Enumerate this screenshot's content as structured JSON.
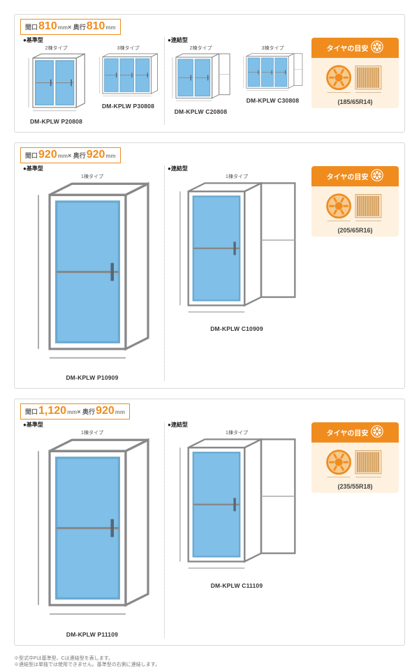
{
  "colors": {
    "orange": "#f08c1e",
    "orange_light": "#fef1df",
    "door_fill": "#7fbfe8",
    "border": "#d9d9d9"
  },
  "sections": [
    {
      "dim_label": {
        "prefix": "間口",
        "w": "810",
        "mid": "× 奥行",
        "d": "810",
        "unit": "mm"
      },
      "groups": [
        {
          "type_label": "●基準型",
          "items": [
            {
              "subtype": "2棟タイプ",
              "model": "DM-KPLW P20808",
              "doors": 2,
              "connected": false
            },
            {
              "subtype": "3棟タイプ",
              "model": "DM-KPLW P30808",
              "doors": 3,
              "connected": false
            }
          ]
        },
        {
          "type_label": "●連結型",
          "items": [
            {
              "subtype": "2棟タイプ",
              "model": "DM-KPLW C20808",
              "doors": 2,
              "connected": true
            },
            {
              "subtype": "3棟タイプ",
              "model": "DM-KPLW C30808",
              "doors": 3,
              "connected": true
            }
          ]
        }
      ],
      "tire": {
        "title": "タイヤの目安",
        "spec": "(185/65R14)"
      }
    },
    {
      "dim_label": {
        "prefix": "間口",
        "w": "920",
        "mid": "× 奥行",
        "d": "920",
        "unit": "mm"
      },
      "groups": [
        {
          "type_label": "●基準型",
          "items": [
            {
              "subtype": "1棟タイプ",
              "model": "DM-KPLW P10909",
              "doors": 1,
              "connected": false
            }
          ]
        },
        {
          "type_label": "●連結型",
          "items": [
            {
              "subtype": "1棟タイプ",
              "model": "DM-KPLW C10909",
              "doors": 1,
              "connected": true
            }
          ]
        }
      ],
      "tire": {
        "title": "タイヤの目安",
        "spec": "(205/65R16)"
      }
    },
    {
      "dim_label": {
        "prefix": "間口",
        "w": "1,120",
        "mid": "× 奥行",
        "d": "920",
        "unit": "mm"
      },
      "groups": [
        {
          "type_label": "●基準型",
          "items": [
            {
              "subtype": "1棟タイプ",
              "model": "DM-KPLW P11109",
              "doors": 1,
              "connected": false
            }
          ]
        },
        {
          "type_label": "●連結型",
          "items": [
            {
              "subtype": "1棟タイプ",
              "model": "DM-KPLW C11109",
              "doors": 1,
              "connected": true
            }
          ]
        }
      ],
      "tire": {
        "title": "タイヤの目安",
        "spec": "(235/55R18)"
      }
    }
  ],
  "footnotes": [
    "※型式中Pは基準型、Cは連結型を表します。",
    "※連結型は単独では使用できません。基準型の右側に連結します。"
  ]
}
